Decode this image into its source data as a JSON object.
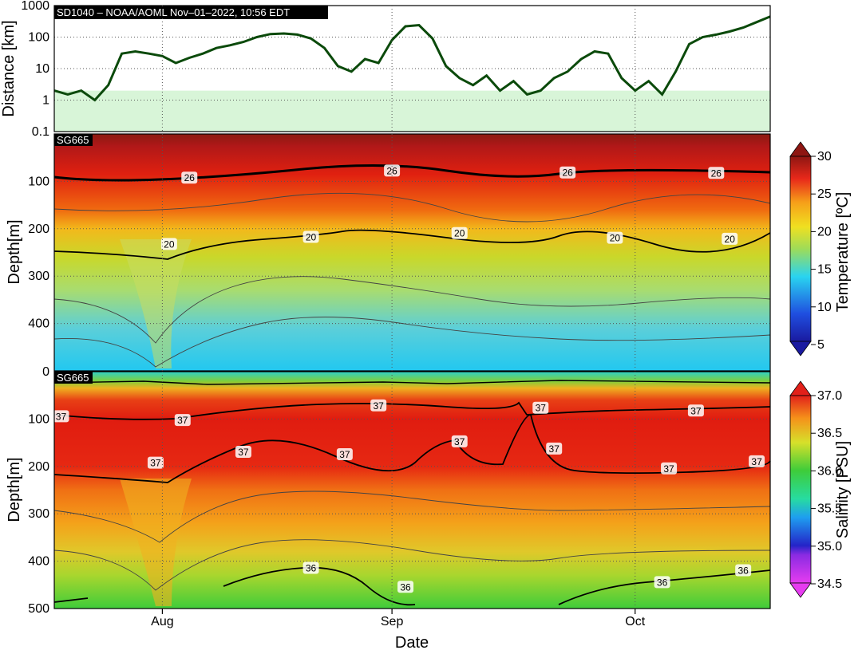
{
  "colors": {
    "distance_line": "#0b4a0b",
    "distance_band": "#d8f5d8",
    "grid": "#555555",
    "contour_bold": "#000000",
    "contour_thin": "#333333"
  },
  "chart_data": [
    {
      "type": "line",
      "banner": "SD1040   –   NOAA/AOML   Nov–01–2022, 10:56 EDT",
      "ylabel": "Distance [km]",
      "yscale": "log",
      "ylim": [
        0.1,
        1000
      ],
      "yticks": [
        "0.1",
        "1",
        "10",
        "100",
        "1000"
      ],
      "shaded_band": [
        0.1,
        2
      ],
      "series": [
        {
          "x": [
            0,
            2,
            4,
            6,
            8,
            10,
            12,
            14,
            16,
            18,
            20,
            22,
            24,
            26,
            28,
            30,
            32,
            34,
            36,
            38,
            40,
            42,
            44,
            46,
            48,
            50,
            52,
            54,
            56,
            58,
            60,
            62,
            64,
            66,
            68,
            70,
            72,
            74,
            76,
            78,
            80,
            82,
            84,
            86,
            88,
            90,
            92,
            94,
            96,
            98,
            100,
            102,
            104,
            106
          ],
          "y": [
            2,
            1.5,
            2,
            1,
            3,
            30,
            35,
            30,
            25,
            15,
            22,
            30,
            45,
            55,
            70,
            100,
            125,
            130,
            120,
            90,
            45,
            12,
            8,
            20,
            15,
            80,
            220,
            240,
            90,
            12,
            5,
            3,
            6,
            2,
            4,
            1.5,
            2,
            5,
            8,
            20,
            35,
            30,
            5,
            2,
            4,
            1.5,
            8,
            60,
            100,
            120,
            150,
            200,
            300,
            450
          ]
        }
      ]
    },
    {
      "type": "heatmap",
      "banner": "SG665",
      "variable": "Temperature",
      "ylabel": "Depth[m]",
      "ylim": [
        500,
        0
      ],
      "yticks": [
        "100",
        "200",
        "300",
        "400"
      ],
      "colorbar_label": "Temperature [ºC]",
      "colorbar_ticks": [
        "5",
        "10",
        "15",
        "20",
        "25",
        "30"
      ],
      "colorbar_range": [
        5,
        30
      ],
      "contour_labels": [
        {
          "value": "26",
          "day": 20,
          "depth": 93
        },
        {
          "value": "26",
          "day": 50,
          "depth": 78
        },
        {
          "value": "26",
          "day": 76,
          "depth": 82
        },
        {
          "value": "26",
          "day": 98,
          "depth": 83
        },
        {
          "value": "20",
          "day": 17,
          "depth": 233
        },
        {
          "value": "20",
          "day": 38,
          "depth": 218
        },
        {
          "value": "20",
          "day": 60,
          "depth": 210
        },
        {
          "value": "20",
          "day": 83,
          "depth": 220
        },
        {
          "value": "20",
          "day": 100,
          "depth": 222
        }
      ]
    },
    {
      "type": "heatmap",
      "banner": "SG665",
      "variable": "Salinity",
      "ylabel": "Depth[m]",
      "ylim": [
        500,
        0
      ],
      "yticks": [
        "0",
        "100",
        "200",
        "300",
        "400",
        "500"
      ],
      "colorbar_label": "Salinity [PSU]",
      "colorbar_ticks": [
        "34.5",
        "35.0",
        "35.5",
        "36.0",
        "36.5",
        "37.0"
      ],
      "colorbar_range": [
        34.5,
        37.0
      ],
      "contour_labels": [
        {
          "value": "37",
          "day": 1,
          "depth": 95
        },
        {
          "value": "37",
          "day": 19,
          "depth": 103
        },
        {
          "value": "37",
          "day": 48,
          "depth": 72
        },
        {
          "value": "37",
          "day": 72,
          "depth": 77
        },
        {
          "value": "37",
          "day": 95,
          "depth": 83
        },
        {
          "value": "37",
          "day": 15,
          "depth": 193
        },
        {
          "value": "37",
          "day": 28,
          "depth": 170
        },
        {
          "value": "37",
          "day": 43,
          "depth": 175
        },
        {
          "value": "37",
          "day": 60,
          "depth": 148
        },
        {
          "value": "37",
          "day": 74,
          "depth": 163
        },
        {
          "value": "37",
          "day": 91,
          "depth": 205
        },
        {
          "value": "37",
          "day": 104,
          "depth": 190
        },
        {
          "value": "36",
          "day": 38,
          "depth": 415
        },
        {
          "value": "36",
          "day": 52,
          "depth": 455
        },
        {
          "value": "36",
          "day": 90,
          "depth": 445
        },
        {
          "value": "36",
          "day": 102,
          "depth": 420
        }
      ]
    }
  ],
  "x_axis": {
    "label": "Date",
    "range_days": [
      0,
      106
    ],
    "ticks": [
      {
        "label": "Aug",
        "day": 16
      },
      {
        "label": "Sep",
        "day": 50
      },
      {
        "label": "Oct",
        "day": 86
      }
    ]
  }
}
